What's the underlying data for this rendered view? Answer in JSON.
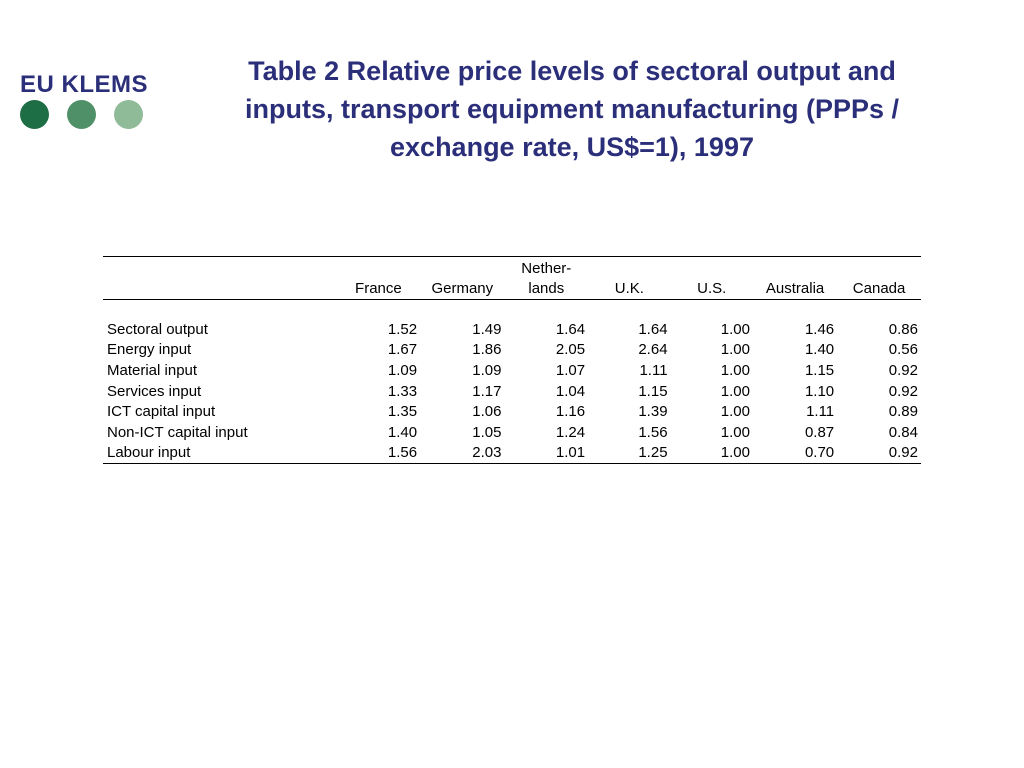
{
  "logo": {
    "text": "EU KLEMS",
    "dot_colors": [
      "#1e6e45",
      "#4f9068",
      "#8fbb98"
    ]
  },
  "title": "Table 2 Relative price levels of sectoral output and inputs, transport equipment manufacturing (PPPs / exchange rate, US$=1), 1997",
  "table": {
    "header_top": [
      "",
      "",
      "",
      "Nether-",
      "",
      "",
      "",
      ""
    ],
    "header_bottom": [
      "",
      "France",
      "Germany",
      "lands",
      "U.K.",
      "U.S.",
      "Australia",
      "Canada"
    ],
    "rows": [
      {
        "label": "Sectoral output",
        "values": [
          "1.52",
          "1.49",
          "1.64",
          "1.64",
          "1.00",
          "1.46",
          "0.86"
        ]
      },
      {
        "label": "Energy input",
        "values": [
          "1.67",
          "1.86",
          "2.05",
          "2.64",
          "1.00",
          "1.40",
          "0.56"
        ]
      },
      {
        "label": "Material input",
        "values": [
          "1.09",
          "1.09",
          "1.07",
          "1.11",
          "1.00",
          "1.15",
          "0.92"
        ]
      },
      {
        "label": "Services input",
        "values": [
          "1.33",
          "1.17",
          "1.04",
          "1.15",
          "1.00",
          "1.10",
          "0.92"
        ]
      },
      {
        "label": "ICT capital input",
        "values": [
          "1.35",
          "1.06",
          "1.16",
          "1.39",
          "1.00",
          "1.11",
          "0.89"
        ]
      },
      {
        "label": "Non-ICT capital input",
        "values": [
          "1.40",
          "1.05",
          "1.24",
          "1.56",
          "1.00",
          "0.87",
          "0.84"
        ]
      },
      {
        "label": "Labour input",
        "values": [
          "1.56",
          "2.03",
          "1.01",
          "1.25",
          "1.00",
          "0.70",
          "0.92"
        ]
      }
    ]
  },
  "colors": {
    "title": "#2b2f7a",
    "text": "#000000"
  }
}
